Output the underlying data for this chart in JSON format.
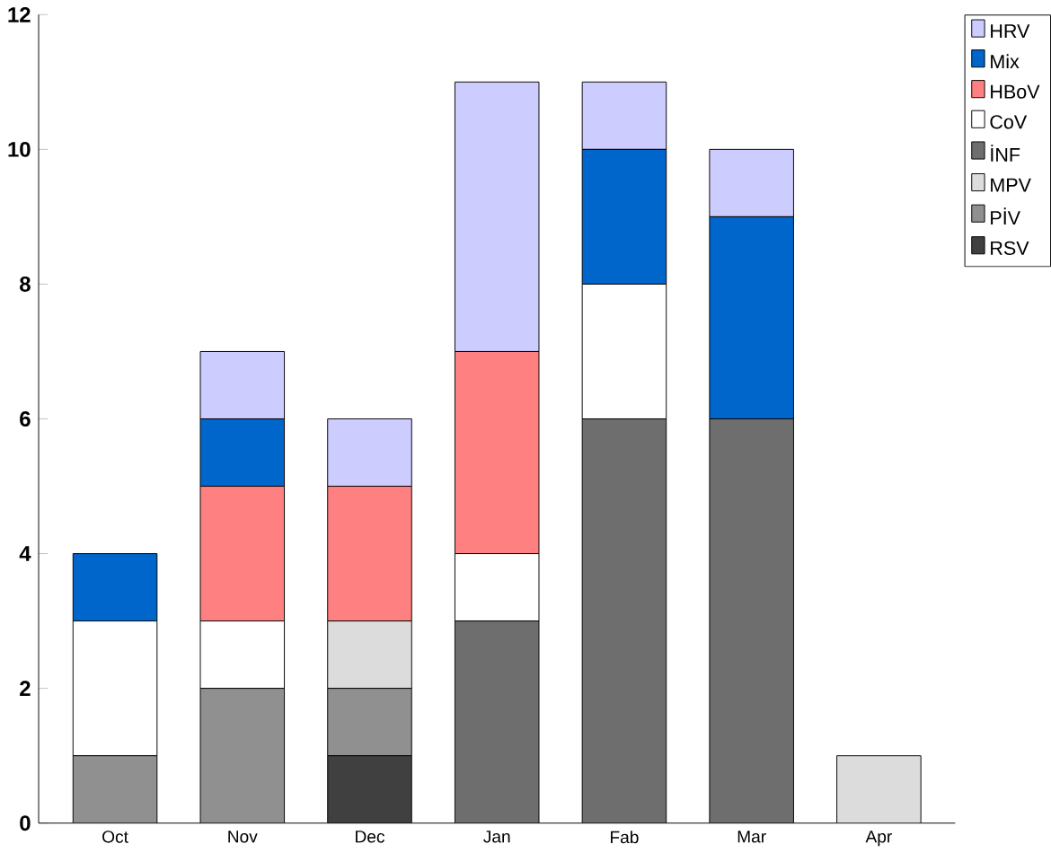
{
  "chart_data": {
    "type": "bar",
    "stacked": true,
    "categories": [
      "Oct",
      "Nov",
      "Dec",
      "Jan",
      "Fab",
      "Mar",
      "Apr"
    ],
    "series": [
      {
        "name": "RSV",
        "color": "#404040",
        "values": [
          0,
          0,
          1,
          0,
          0,
          0,
          0
        ]
      },
      {
        "name": "PİV",
        "color": "#909090",
        "values": [
          1,
          2,
          1,
          0,
          0,
          0,
          0
        ]
      },
      {
        "name": "MPV",
        "color": "#dcdcdc",
        "values": [
          0,
          0,
          1,
          0,
          0,
          0,
          1
        ]
      },
      {
        "name": "İNF",
        "color": "#6e6e6e",
        "values": [
          0,
          0,
          0,
          3,
          6,
          6,
          0
        ]
      },
      {
        "name": "CoV",
        "color": "#ffffff",
        "values": [
          2,
          1,
          0,
          1,
          2,
          0,
          0
        ]
      },
      {
        "name": "HBoV",
        "color": "#ff8080",
        "values": [
          0,
          2,
          2,
          3,
          0,
          0,
          0
        ]
      },
      {
        "name": "Mix",
        "color": "#0066cc",
        "values": [
          1,
          1,
          0,
          0,
          2,
          3,
          0
        ]
      },
      {
        "name": "HRV",
        "color": "#ccccff",
        "values": [
          0,
          1,
          1,
          4,
          1,
          1,
          0
        ]
      }
    ],
    "ylim": [
      0,
      12
    ],
    "yticks": [
      0,
      2,
      4,
      6,
      8,
      10,
      12
    ],
    "grid": false,
    "legend": "top right"
  }
}
